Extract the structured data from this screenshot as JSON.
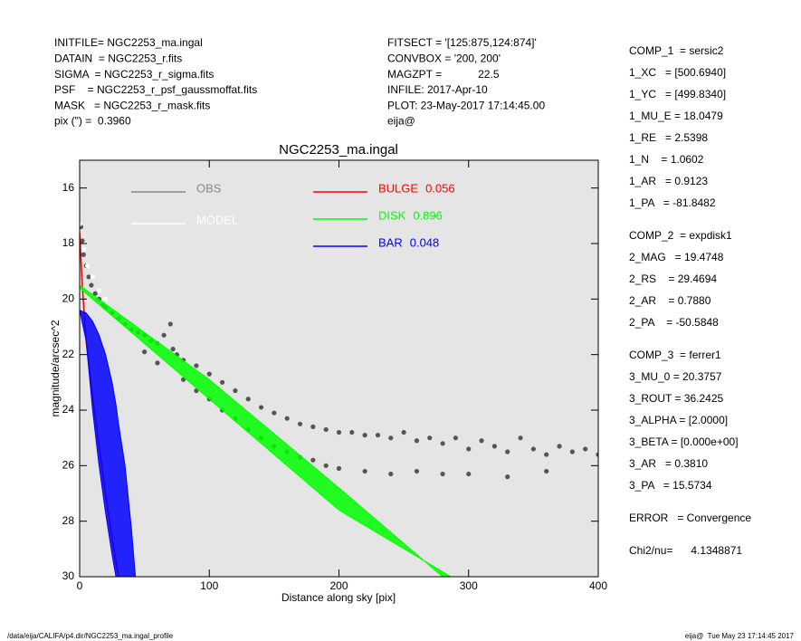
{
  "header_left": [
    "INITFILE= NGC2253_ma.ingal",
    "DATAIN  = NGC2253_r.fits",
    "SIGMA  = NGC2253_r_sigma.fits",
    "PSF    = NGC2253_r_psf_gaussmoffat.fits",
    "MASK   = NGC2253_r_mask.fits",
    "pix (\") =  0.3960"
  ],
  "header_middle": [
    "FITSECT = '[125:875,124:874]'",
    "CONVBOX = '200, 200'",
    "MAGZPT =            22.5",
    "INFILE: 2017-Apr-10",
    "PLOT: 23-May-2017 17:14:45.00",
    "eija@"
  ],
  "right_panel": [
    [
      "COMP_1  = sersic2",
      "1_XC   = [500.6940]",
      "1_YC   = [499.8340]",
      "1_MU_E = 18.0479",
      "1_RE   = 2.5398",
      "1_N    = 1.0602",
      "1_AR   = 0.9123",
      "1_PA   = -81.8482"
    ],
    [
      "COMP_2  = expdisk1",
      "2_MAG   = 19.4748",
      "2_RS    = 29.4694",
      "2_AR    = 0.7880",
      "2_PA    = -50.5848"
    ],
    [
      "COMP_3  = ferrer1",
      "3_MU_0 = 20.3757",
      "3_ROUT = 36.2425",
      "3_ALPHA = [2.0000]",
      "3_BETA = [0.000e+00]",
      "3_AR   = 0.3810",
      "3_PA   = 15.5734"
    ],
    [
      "ERROR   = Convergence"
    ],
    [
      "Chi2/nu=      4.1348871"
    ]
  ],
  "footer_left": "/data/eija/CALIFA/p4.dir/NGC2253_ma.ingal_profile",
  "footer_right": "eija@  Tue May 23 17:14:45 2017",
  "chart_data": {
    "type": "scatter",
    "title": "NGC2253_ma.ingal",
    "xlabel": "Distance along sky [pix]",
    "ylabel": "magnitude/arcsec^2",
    "xlim": [
      0,
      400
    ],
    "ylim": [
      30,
      15
    ],
    "xticks": [
      0,
      100,
      200,
      300,
      400
    ],
    "yticks": [
      16,
      18,
      20,
      22,
      24,
      26,
      28,
      30
    ],
    "background": "#e5e5e5",
    "series": [
      {
        "name": "OBS",
        "color": "#555555",
        "kind": "points",
        "x": [
          1,
          2,
          3,
          5,
          7,
          9,
          12,
          15,
          18,
          20,
          25,
          30,
          35,
          40,
          45,
          50,
          50,
          55,
          60,
          60,
          65,
          70,
          72,
          75,
          80,
          80,
          90,
          90,
          100,
          100,
          110,
          110,
          120,
          120,
          130,
          130,
          140,
          140,
          150,
          150,
          160,
          160,
          170,
          170,
          180,
          180,
          190,
          190,
          200,
          200,
          210,
          220,
          220,
          230,
          240,
          240,
          250,
          260,
          260,
          270,
          280,
          280,
          290,
          300,
          300,
          310,
          320,
          330,
          330,
          340,
          350,
          360,
          360,
          370,
          380,
          390,
          400
        ],
        "values": [
          17.4,
          17.9,
          18.4,
          18.8,
          19.2,
          19.5,
          19.8,
          20.0,
          20.2,
          20.3,
          20.5,
          20.7,
          20.9,
          21.1,
          21.2,
          21.3,
          21.9,
          21.5,
          21.6,
          22.3,
          21.3,
          20.9,
          21.8,
          22.0,
          22.2,
          22.9,
          22.4,
          23.3,
          22.7,
          23.6,
          23.0,
          24.0,
          23.3,
          24.3,
          23.6,
          24.7,
          23.9,
          25.0,
          24.1,
          25.3,
          24.3,
          25.5,
          24.5,
          25.7,
          24.6,
          25.8,
          24.7,
          26.0,
          24.8,
          26.1,
          24.8,
          24.9,
          26.2,
          24.9,
          25.0,
          26.3,
          24.8,
          25.1,
          26.2,
          25.0,
          25.2,
          26.3,
          25.0,
          25.4,
          26.3,
          25.1,
          25.3,
          25.5,
          26.4,
          25.0,
          25.4,
          25.6,
          26.2,
          25.3,
          25.5,
          25.4,
          25.6
        ]
      },
      {
        "name": "MODEL",
        "color": "#ffffff",
        "kind": "points",
        "x": [
          0,
          3,
          6,
          10,
          15,
          20
        ],
        "values": [
          17.3,
          18.2,
          18.8,
          19.2,
          19.7,
          20.0
        ]
      },
      {
        "name": "BULGE",
        "fraction": 0.056,
        "color": "#ff0000",
        "kind": "line",
        "x": [
          0,
          2,
          5,
          10,
          15,
          20,
          25,
          30
        ],
        "values": [
          17.6,
          19.5,
          21.5,
          23.5,
          25.3,
          27.0,
          28.6,
          30.0
        ]
      },
      {
        "name": "DISK",
        "fraction": 0.896,
        "color": "#00ff00",
        "kind": "band",
        "x": [
          0,
          100,
          200,
          290
        ],
        "values": [
          19.5,
          22.9,
          26.8,
          30.4
        ],
        "values_bottom": [
          19.6,
          23.6,
          27.6,
          30.1
        ]
      },
      {
        "name": "BAR",
        "fraction": 0.048,
        "color": "#0000ff",
        "kind": "band",
        "x": [
          0,
          5,
          10,
          15,
          20,
          25,
          28,
          30,
          35,
          40,
          43
        ],
        "values": [
          20.4,
          20.5,
          20.8,
          21.3,
          22.0,
          23.0,
          23.8,
          24.5,
          26.0,
          28.3,
          30.0
        ],
        "values_bottom": [
          20.4,
          21.5,
          24.0,
          26.0,
          27.7,
          29.2,
          30.0,
          30.0,
          30.0,
          30.0,
          30.0
        ]
      }
    ]
  }
}
